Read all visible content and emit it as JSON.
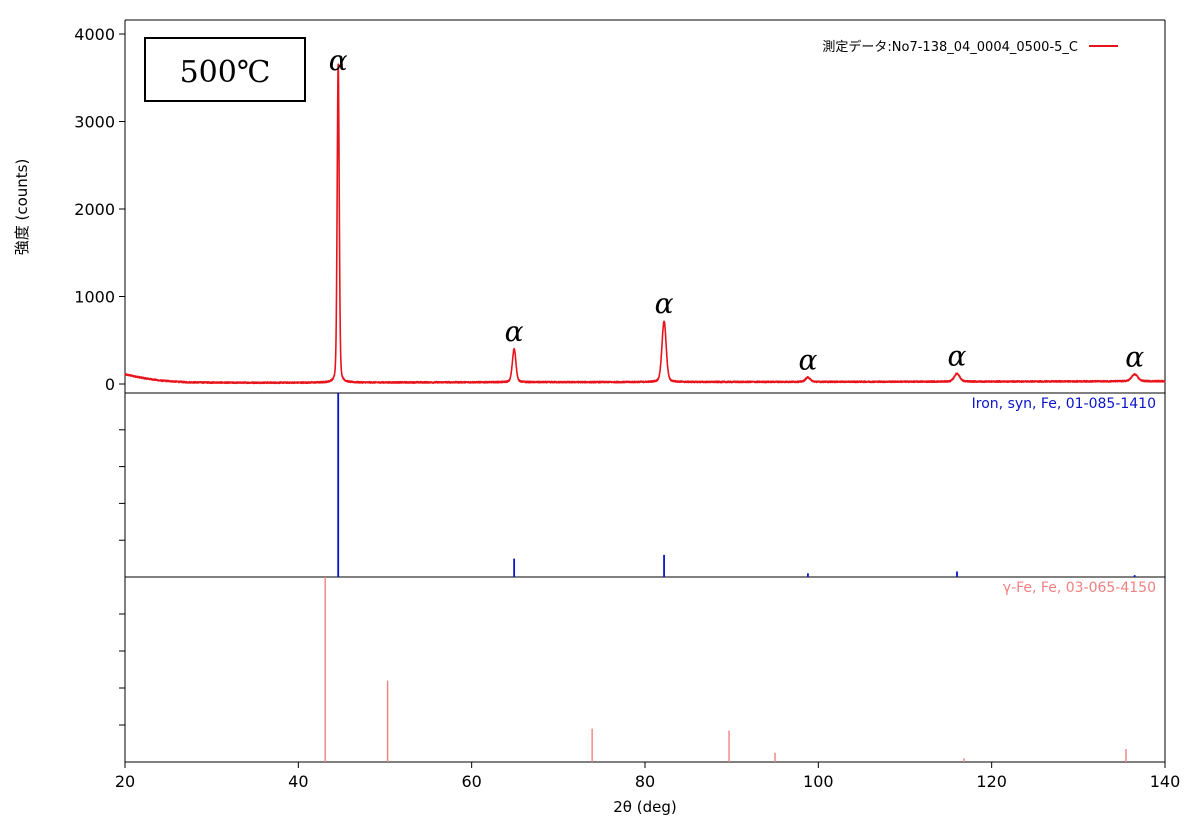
{
  "chart_data": {
    "type": "line",
    "xlabel": "2θ (deg)",
    "ylabel": "強度 (counts)",
    "xlim": [
      20,
      140
    ],
    "ylim": [
      0,
      4000
    ],
    "x_ticks": [
      20,
      40,
      60,
      80,
      100,
      120,
      140
    ],
    "y_ticks": [
      0,
      1000,
      2000,
      3000,
      4000
    ],
    "temperature_box": "500℃",
    "legend": {
      "label": "測定データ:No7-138_04_0004_0500-5_C",
      "color": "#e8141c",
      "placement": "top-right"
    },
    "measured": {
      "name": "測定データ:No7-138_04_0004_0500-5_C",
      "color": "#e8141c",
      "background": [
        [
          20,
          110
        ],
        [
          22,
          70
        ],
        [
          24,
          40
        ],
        [
          27,
          20
        ],
        [
          32,
          15
        ],
        [
          40,
          15
        ],
        [
          60,
          20
        ],
        [
          80,
          22
        ],
        [
          100,
          25
        ],
        [
          120,
          28
        ],
        [
          140,
          32
        ]
      ],
      "peaks": [
        {
          "x": 44.6,
          "y": 3650,
          "label": "α"
        },
        {
          "x": 64.9,
          "y": 400,
          "label": "α"
        },
        {
          "x": 82.2,
          "y": 720,
          "label": "α"
        },
        {
          "x": 98.8,
          "y": 75,
          "label": "α"
        },
        {
          "x": 116.0,
          "y": 120,
          "label": "α"
        },
        {
          "x": 136.5,
          "y": 110,
          "label": "α"
        }
      ]
    },
    "references": [
      {
        "name": "Iron, syn, Fe, 01-085-1410",
        "color": "#0a14c8",
        "sticks": [
          {
            "x": 44.6,
            "intensity": 100
          },
          {
            "x": 64.9,
            "intensity": 10
          },
          {
            "x": 82.2,
            "intensity": 12
          },
          {
            "x": 98.8,
            "intensity": 2
          },
          {
            "x": 116.0,
            "intensity": 3
          },
          {
            "x": 136.5,
            "intensity": 1
          }
        ]
      },
      {
        "name": "γ-Fe, Fe, 03-065-4150",
        "color": "#f08080",
        "sticks": [
          {
            "x": 43.1,
            "intensity": 100
          },
          {
            "x": 50.3,
            "intensity": 44
          },
          {
            "x": 73.9,
            "intensity": 18
          },
          {
            "x": 89.7,
            "intensity": 17
          },
          {
            "x": 95.0,
            "intensity": 5
          },
          {
            "x": 116.8,
            "intensity": 2
          },
          {
            "x": 135.5,
            "intensity": 7
          }
        ]
      }
    ]
  }
}
